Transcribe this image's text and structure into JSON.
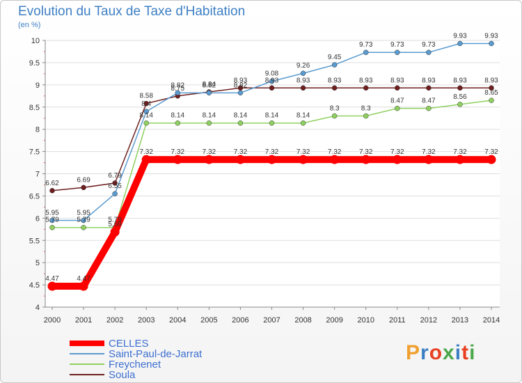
{
  "header": {
    "title": "Evolution du Taux de Taxe d'Habitation",
    "unit": "(en %)"
  },
  "logo": {
    "text": "Proxiti",
    "colors": [
      "#f0a030",
      "#3d7fc4",
      "#e84020",
      "#4aa84a",
      "#3d7fc4",
      "#e84020",
      "#4aa84a"
    ]
  },
  "chart_data": {
    "type": "line",
    "title": "Evolution du Taux de Taxe d'Habitation",
    "ylabel": "(en %)",
    "xlabel": "",
    "x": [
      "2000",
      "2001",
      "2002",
      "2003",
      "2004",
      "2005",
      "2006",
      "2007",
      "2008",
      "2009",
      "2010",
      "2011",
      "2012",
      "2013",
      "2014"
    ],
    "ylim": [
      4,
      10
    ],
    "yticks": [
      "4",
      "4.5",
      "5",
      "5.5",
      "6",
      "6.5",
      "7",
      "7.5",
      "8",
      "8.5",
      "9",
      "9.5",
      "10"
    ],
    "grid": "horizontal",
    "legend_position": "bottom-left",
    "series": [
      {
        "name": "CELLES",
        "color": "#ff0000",
        "values": [
          4.47,
          4.47,
          5.69,
          7.32,
          7.32,
          7.32,
          7.32,
          7.32,
          7.32,
          7.32,
          7.32,
          7.32,
          7.32,
          7.32,
          7.32
        ],
        "labels": [
          "4.47",
          "4.47",
          "5.69",
          "7.32",
          "7.32",
          "7.32",
          "7.32",
          "7.32",
          "7.32",
          "7.32",
          "7.32",
          "7.32",
          "7.32",
          "7.32",
          "7.32"
        ]
      },
      {
        "name": "Saint-Paul-de-Jarrat",
        "color": "#5a9bd0",
        "values": [
          5.95,
          5.95,
          6.55,
          8.4,
          8.82,
          8.82,
          8.82,
          9.08,
          9.26,
          9.45,
          9.73,
          9.73,
          9.73,
          9.93,
          9.93
        ],
        "labels": [
          "5.95",
          "5.95",
          "6.55",
          "8.4",
          "8.82",
          "8.82",
          "8.82",
          "9.08",
          "9.26",
          "9.45",
          "9.73",
          "9.73",
          "9.73",
          "9.93",
          "9.93"
        ]
      },
      {
        "name": "Freychenet",
        "color": "#8fd060",
        "values": [
          5.79,
          5.79,
          5.79,
          8.14,
          8.14,
          8.14,
          8.14,
          8.14,
          8.14,
          8.3,
          8.3,
          8.47,
          8.47,
          8.56,
          8.65
        ],
        "labels": [
          "5.79",
          "5.79",
          "5.79",
          "8.14",
          "8.14",
          "8.14",
          "8.14",
          "8.14",
          "8.14",
          "8.3",
          "8.3",
          "8.47",
          "8.47",
          "8.56",
          "8.65"
        ]
      },
      {
        "name": "Soula",
        "color": "#6e1e1e",
        "values": [
          6.62,
          6.69,
          6.79,
          8.58,
          8.75,
          8.84,
          8.93,
          8.93,
          8.93,
          8.93,
          8.93,
          8.93,
          8.93,
          8.93,
          8.93
        ],
        "labels": [
          "6.62",
          "6.69",
          "6.79",
          "8.58",
          "8.75",
          "8.84",
          "8.93",
          "8.93",
          "8.93",
          "8.93",
          "8.93",
          "8.93",
          "8.93",
          "8.93",
          "8.93"
        ]
      }
    ]
  }
}
